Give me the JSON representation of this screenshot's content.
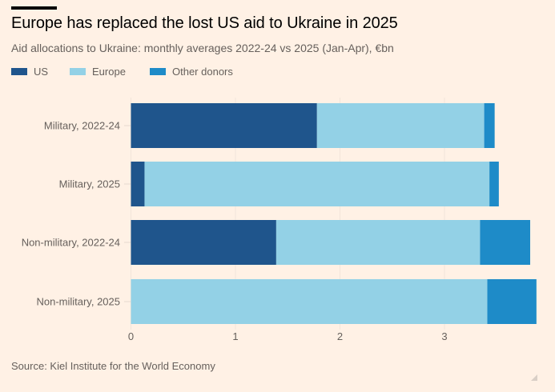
{
  "header": {
    "title": "Europe has replaced the lost US aid to Ukraine in 2025",
    "subtitle": "Aid allocations to Ukraine: monthly averages 2022-24 vs 2025 (Jan-Apr), €bn"
  },
  "legend": [
    {
      "name": "US",
      "color": "#1F558C"
    },
    {
      "name": "Europe",
      "color": "#93D1E6"
    },
    {
      "name": "Other donors",
      "color": "#1E8BC8"
    }
  ],
  "source": "Source: Kiel Institute for the World Economy",
  "chart_data": {
    "type": "bar",
    "orientation": "horizontal",
    "stacked": true,
    "title": "Europe has replaced the lost US aid to Ukraine in 2025",
    "subtitle": "Aid allocations to Ukraine: monthly averages 2022-24 vs 2025 (Jan-Apr), €bn",
    "xlabel": "",
    "ylabel": "",
    "categories": [
      "Military, 2022-24",
      "Military, 2025",
      "Non-military, 2022-24",
      "Non-military, 2025"
    ],
    "series": [
      {
        "name": "US",
        "color": "#1F558C",
        "values": [
          1.78,
          0.13,
          1.39,
          0.0
        ]
      },
      {
        "name": "Europe",
        "color": "#93D1E6",
        "values": [
          1.6,
          3.3,
          1.95,
          3.41
        ]
      },
      {
        "name": "Other donors",
        "color": "#1E8BC8",
        "values": [
          0.1,
          0.09,
          0.48,
          0.47
        ]
      }
    ],
    "xlim": [
      0,
      3.9
    ],
    "xticks": [
      0,
      1,
      2,
      3
    ],
    "grid": true,
    "legend_position": "top-left",
    "source": "Source: Kiel Institute for the World Economy"
  }
}
